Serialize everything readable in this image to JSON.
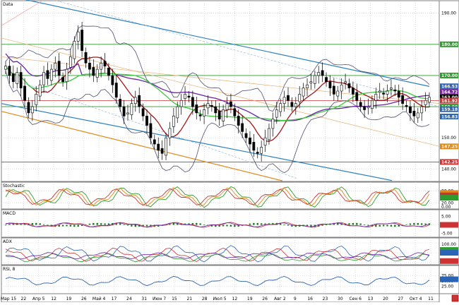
{
  "chart_data": {
    "type": "candlestick",
    "panes": [
      {
        "title": "Data",
        "ylim": [
          136,
          194
        ],
        "yticks": [
          140.0,
          150.0,
          160.0,
          170.0,
          180.0,
          190.0
        ],
        "price_labels": [
          {
            "value": 180.0,
            "color": "#2e9b2e"
          },
          {
            "value": 170.0,
            "color": "#2e9b2e"
          },
          {
            "value": 166.53,
            "color": "#2a64b4"
          },
          {
            "value": 164.72,
            "color": "#7a1fa2"
          },
          {
            "value": 163.0,
            "color": "#000000"
          },
          {
            "value": 161.92,
            "color": "#cc3333"
          },
          {
            "value": 160.0,
            "color": "#2e9b2e"
          },
          {
            "value": 159.18,
            "color": "#2a64b4"
          },
          {
            "value": 156.83,
            "color": "#2a64b4"
          },
          {
            "value": 147.25,
            "color": "#e08a1a"
          },
          {
            "value": 142.25,
            "color": "#cc3333"
          }
        ],
        "hlines": [
          {
            "value": 180.0,
            "color": "#2e9b2e"
          },
          {
            "value": 170.0,
            "color": "#2e9b2e"
          },
          {
            "value": 160.0,
            "color": "#2e9b2e"
          },
          {
            "value": 161.92,
            "color": "#cc3333"
          },
          {
            "value": 142.25,
            "color": "#cc3333"
          }
        ],
        "closes": [
          173,
          170,
          168,
          171,
          166,
          162,
          158,
          160,
          164,
          167,
          171,
          169,
          172,
          174,
          170,
          168,
          172,
          176,
          181,
          184,
          178,
          174,
          172,
          170,
          172,
          174,
          173,
          170,
          167,
          163,
          160,
          157,
          158,
          161,
          163,
          160,
          157,
          154,
          150,
          148,
          146,
          145,
          150,
          153,
          157,
          160,
          162,
          164,
          163,
          160,
          158,
          157,
          159,
          161,
          160,
          158,
          156,
          159,
          161,
          160,
          157,
          154,
          152,
          150,
          148,
          146,
          145,
          147,
          150,
          153,
          156,
          159,
          161,
          163,
          162,
          160,
          161,
          164,
          166,
          167,
          168,
          170,
          171,
          170,
          168,
          166,
          164,
          165,
          167,
          168,
          166,
          164,
          162,
          160,
          159,
          160,
          162,
          164,
          165,
          164,
          165,
          166,
          165,
          163,
          161,
          160,
          158,
          157,
          158,
          160,
          162,
          163
        ]
      },
      {
        "title": "Stochastic",
        "ylim": [
          0,
          100
        ],
        "labels": [
          "80.00",
          "20.00",
          "0.00"
        ]
      },
      {
        "title": "MACD",
        "labels": [
          "5.00",
          "0.00",
          "-5.00"
        ]
      },
      {
        "title": "ADX",
        "labels": [
          "100.00",
          "50.00",
          "0.00"
        ]
      },
      {
        "title": "RSI, 8",
        "labels": [
          "75.00",
          "50.00",
          "25.00"
        ]
      }
    ],
    "x_tick_labels": [
      "Мар 15",
      "22",
      "Апр 5",
      "12",
      "19",
      "26",
      "Май 4",
      "17",
      "24",
      "31",
      "Июн 7",
      "15",
      "21",
      "28",
      "Июл 5",
      "12",
      "19",
      "26",
      "Авг 2",
      "9",
      "16",
      "23",
      "30",
      "Сен 6",
      "13",
      "20",
      "27",
      "Окт 4",
      "11"
    ]
  }
}
